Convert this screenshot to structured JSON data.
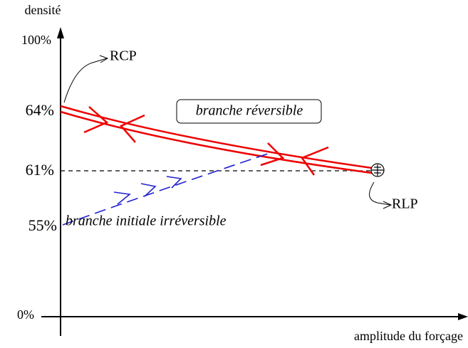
{
  "axes": {
    "y_label": "densité",
    "x_label": "amplitude du forçage",
    "y_ticks": [
      "100%",
      "64%",
      "61%",
      "55%",
      "0%"
    ]
  },
  "annotations": {
    "rcp": "RCP",
    "rlp": "RLP",
    "reversible": "branche réversible",
    "initial": "branche initiale irréversible"
  }
}
